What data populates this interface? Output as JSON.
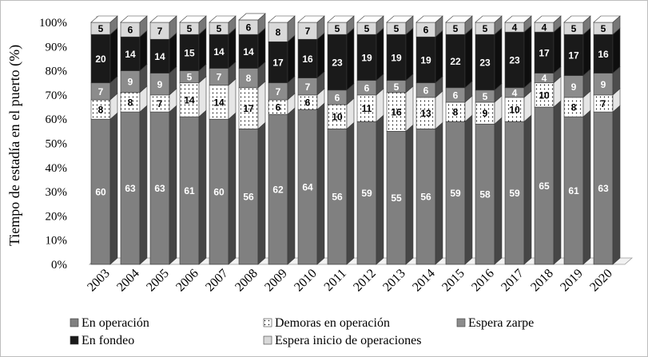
{
  "chart_data": {
    "type": "bar",
    "stacked": true,
    "ylabel": "Tiempo de estadía en el puerto (%)",
    "xlabel": "",
    "ylim": [
      0,
      100
    ],
    "yticks": [
      "0%",
      "10%",
      "20%",
      "30%",
      "40%",
      "50%",
      "60%",
      "70%",
      "80%",
      "90%",
      "100%"
    ],
    "categories": [
      "2003",
      "2004",
      "2005",
      "2006",
      "2007",
      "2008",
      "2009",
      "2010",
      "2011",
      "2012",
      "2013",
      "2014",
      "2015",
      "2016",
      "2017",
      "2018",
      "2019",
      "2020"
    ],
    "series": [
      {
        "name": "En operación",
        "color": "#808080",
        "pattern": "solid",
        "label_color": "#ffffff",
        "values": [
          60,
          63,
          63,
          61,
          60,
          56,
          62,
          64,
          56,
          59,
          55,
          56,
          59,
          58,
          59,
          65,
          61,
          63
        ]
      },
      {
        "name": "Demoras en operación",
        "color": "#ffffff",
        "pattern": "dots",
        "label_color": "#000000",
        "values": [
          8,
          8,
          7,
          14,
          14,
          17,
          6,
          6,
          10,
          11,
          16,
          13,
          8,
          9,
          10,
          10,
          8,
          7
        ]
      },
      {
        "name": "Espera zarpe",
        "color": "#8c8c8c",
        "pattern": "solid",
        "label_color": "#ffffff",
        "values": [
          7,
          9,
          9,
          5,
          7,
          8,
          7,
          7,
          6,
          6,
          5,
          6,
          6,
          5,
          4,
          4,
          9,
          9
        ]
      },
      {
        "name": "En fondeo",
        "color": "#1a1a1a",
        "pattern": "solid",
        "label_color": "#ffffff",
        "values": [
          20,
          14,
          14,
          15,
          14,
          14,
          17,
          16,
          23,
          19,
          19,
          19,
          22,
          23,
          23,
          17,
          17,
          16
        ]
      },
      {
        "name": "Espera inicio de operaciones",
        "color": "#d9d9d9",
        "pattern": "solid",
        "label_color": "#000000",
        "values": [
          5,
          6,
          7,
          5,
          5,
          6,
          8,
          7,
          5,
          5,
          5,
          6,
          5,
          5,
          4,
          4,
          5,
          5
        ]
      }
    ],
    "legend": {
      "position": "bottom",
      "rows": [
        [
          "En operación",
          "Demoras en operación",
          "Espera zarpe"
        ],
        [
          "En fondeo",
          "Espera inicio de operaciones"
        ]
      ]
    }
  }
}
